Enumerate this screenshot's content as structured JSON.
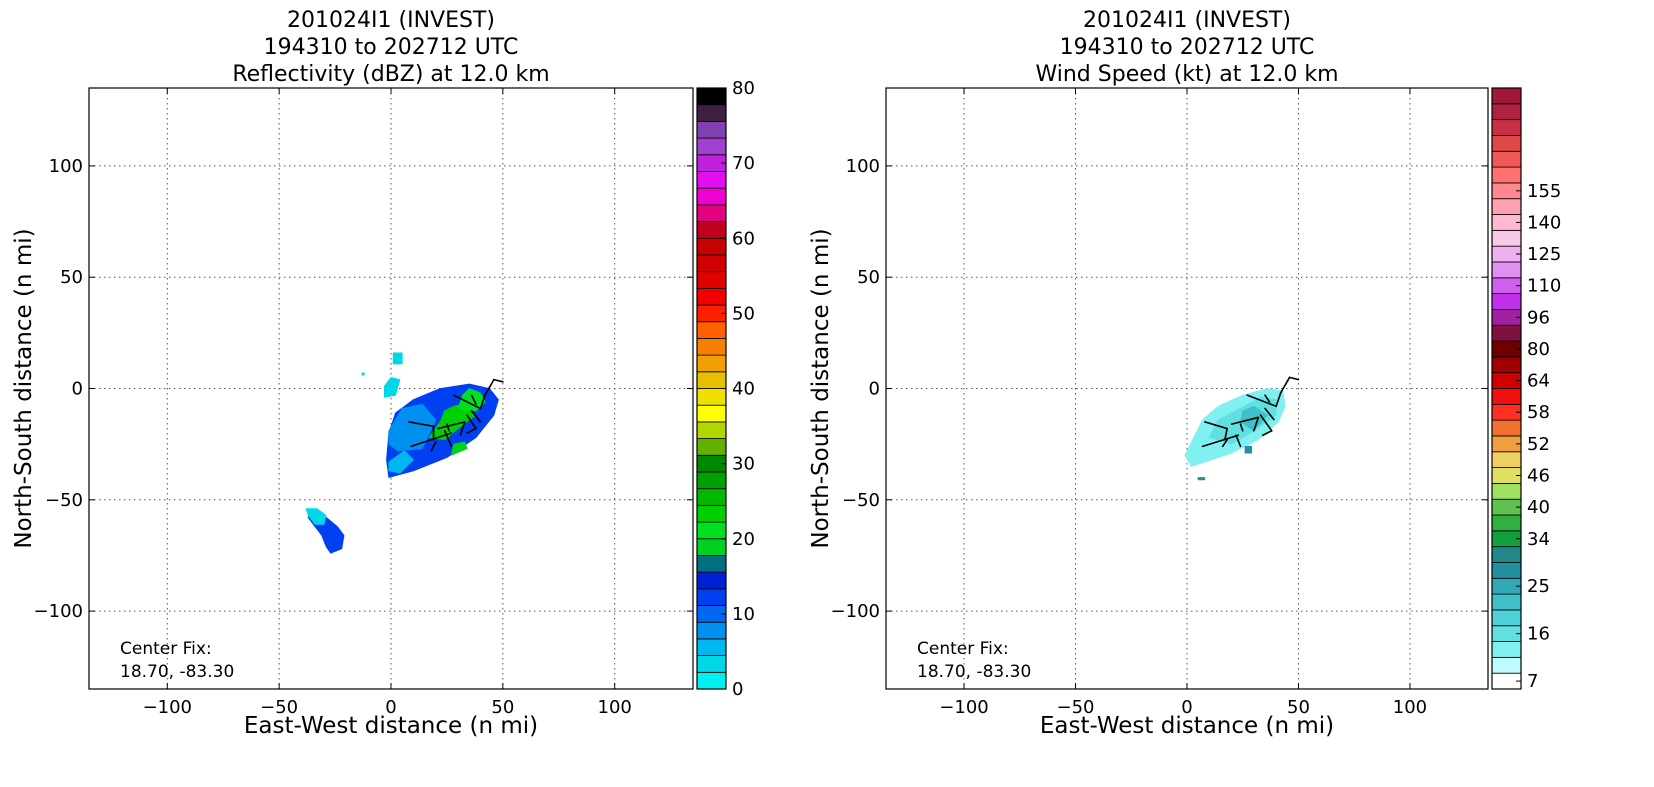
{
  "chart_data": [
    {
      "type": "heatmap",
      "title": [
        "201024I1 (INVEST)",
        "194310 to 202712 UTC",
        "Reflectivity (dBZ) at 12.0 km"
      ],
      "xlabel": "East-West distance (n mi)",
      "ylabel": "North-South distance (n mi)",
      "xlim": [
        -135,
        135
      ],
      "ylim": [
        -135,
        135
      ],
      "xticks": [
        -100,
        -50,
        0,
        50,
        100
      ],
      "yticks": [
        -100,
        -50,
        0,
        50,
        100
      ],
      "grid": true,
      "annotation": [
        "Center Fix:",
        "18.70, -83.30"
      ],
      "colorbar": {
        "ticks": [
          0,
          10,
          20,
          30,
          40,
          50,
          60,
          70,
          80
        ],
        "range": [
          0,
          80
        ],
        "colors": [
          "#00f0f0",
          "#00d8e8",
          "#00b8f0",
          "#0090f0",
          "#0068f0",
          "#0040f0",
          "#0020d8",
          "#007080",
          "#00d020",
          "#00e020",
          "#00d000",
          "#00b800",
          "#00a000",
          "#008800",
          "#60b000",
          "#b0d800",
          "#ffff00",
          "#f0e000",
          "#e8c000",
          "#f0a000",
          "#f88000",
          "#ff6000",
          "#ff2000",
          "#f00000",
          "#e00000",
          "#d00000",
          "#c80000",
          "#c00020",
          "#e00080",
          "#f000d0",
          "#e010f0",
          "#c020e0",
          "#a040d0",
          "#8040b0",
          "#402040",
          "#000000"
        ]
      },
      "echoes": [
        {
          "color": "#0040f0",
          "polygon": [
            [
              -1,
              -40
            ],
            [
              10,
              -37
            ],
            [
              25,
              -31
            ],
            [
              38,
              -22
            ],
            [
              46,
              -12
            ],
            [
              48,
              -5
            ],
            [
              44,
              0
            ],
            [
              35,
              2
            ],
            [
              22,
              0
            ],
            [
              10,
              -5
            ],
            [
              2,
              -11
            ],
            [
              -1,
              -20
            ],
            [
              -2,
              -32
            ]
          ]
        },
        {
          "color": "#0090f0",
          "polygon": [
            [
              -1,
              -19
            ],
            [
              5,
              -9
            ],
            [
              14,
              -7
            ],
            [
              20,
              -14
            ],
            [
              14,
              -27
            ],
            [
              3,
              -28
            ],
            [
              -1,
              -25
            ]
          ]
        },
        {
          "color": "#00b8f0",
          "polygon": [
            [
              -1,
              -33
            ],
            [
              6,
              -28
            ],
            [
              10,
              -32
            ],
            [
              4,
              -38
            ],
            [
              -1,
              -37
            ]
          ]
        },
        {
          "color": "#00d000",
          "polygon": [
            [
              17,
              -22
            ],
            [
              24,
              -23
            ],
            [
              30,
              -18
            ],
            [
              35,
              -14
            ],
            [
              38,
              -12
            ],
            [
              32,
              -7
            ],
            [
              28,
              -8
            ],
            [
              24,
              -10
            ],
            [
              22,
              -15
            ]
          ]
        },
        {
          "color": "#00e020",
          "polygon": [
            [
              30,
              -9
            ],
            [
              38,
              -10
            ],
            [
              42,
              -6
            ],
            [
              40,
              -2
            ],
            [
              35,
              0
            ],
            [
              32,
              -3
            ]
          ]
        },
        {
          "color": "#00d020",
          "polygon": [
            [
              27,
              -30
            ],
            [
              34,
              -27
            ],
            [
              33,
              -24
            ],
            [
              28,
              -25
            ]
          ]
        },
        {
          "color": "#0040f0",
          "polygon": [
            [
              -36,
              -55
            ],
            [
              -30,
              -57
            ],
            [
              -24,
              -62
            ],
            [
              -21,
              -66
            ],
            [
              -22,
              -72
            ],
            [
              -27,
              -74
            ],
            [
              -29,
              -71
            ],
            [
              -31,
              -66
            ],
            [
              -34,
              -62
            ],
            [
              -37,
              -58
            ]
          ]
        },
        {
          "color": "#00d8e8",
          "polygon": [
            [
              -38,
              -54
            ],
            [
              -33,
              -54
            ],
            [
              -29,
              -57
            ],
            [
              -30,
              -61
            ],
            [
              -34,
              -61
            ],
            [
              -37,
              -57
            ]
          ]
        },
        {
          "color": "#00d8e8",
          "polygon": [
            [
              -3,
              -4
            ],
            [
              2,
              -3
            ],
            [
              4,
              4
            ],
            [
              0,
              5
            ],
            [
              -3,
              1
            ]
          ]
        },
        {
          "color": "#00d8e8",
          "polygon": [
            [
              1,
              11
            ],
            [
              5,
              11
            ],
            [
              5,
              16
            ],
            [
              1,
              16
            ]
          ]
        },
        {
          "color": "#00d8e8",
          "polygon": [
            [
              -13,
              6
            ],
            [
              -12,
              6
            ],
            [
              -12,
              7
            ],
            [
              -13,
              7
            ]
          ]
        }
      ],
      "barbs": [
        [
          [
            9,
            -26
          ],
          [
            27,
            -20
          ]
        ],
        [
          [
            24,
            -19
          ],
          [
            27,
            -26
          ]
        ],
        [
          [
            20,
            -24
          ],
          [
            18,
            -28
          ]
        ],
        [
          [
            8,
            -15
          ],
          [
            19,
            -17
          ]
        ],
        [
          [
            19,
            -17
          ],
          [
            19,
            -23
          ]
        ],
        [
          [
            21,
            -18
          ],
          [
            33,
            -15
          ]
        ],
        [
          [
            33,
            -15
          ],
          [
            31,
            -21
          ]
        ],
        [
          [
            25,
            -16
          ],
          [
            26,
            -19
          ]
        ],
        [
          [
            34,
            -12
          ],
          [
            38,
            -18
          ]
        ],
        [
          [
            38,
            -18
          ],
          [
            34,
            -20
          ]
        ],
        [
          [
            40,
            -15
          ],
          [
            36,
            -10
          ]
        ],
        [
          [
            28,
            -3
          ],
          [
            40,
            -9
          ]
        ],
        [
          [
            40,
            -9
          ],
          [
            42,
            -3
          ]
        ],
        [
          [
            36,
            -3
          ],
          [
            38,
            -7
          ]
        ],
        [
          [
            42,
            -3
          ],
          [
            46,
            4
          ]
        ],
        [
          [
            46,
            4
          ],
          [
            50,
            3
          ]
        ]
      ]
    },
    {
      "type": "heatmap",
      "title": [
        "201024I1 (INVEST)",
        "194310 to 202712 UTC",
        "Wind Speed (kt) at 12.0 km"
      ],
      "xlabel": "East-West distance (n mi)",
      "ylabel": "North-South distance (n mi)",
      "xlim": [
        -135,
        135
      ],
      "ylim": [
        -135,
        135
      ],
      "xticks": [
        -100,
        -50,
        0,
        50,
        100
      ],
      "yticks": [
        -100,
        -50,
        0,
        50,
        100
      ],
      "grid": true,
      "annotation": [
        "Center Fix:",
        "18.70, -83.30"
      ],
      "colorbar": {
        "ticks": [
          7,
          16,
          25,
          34,
          40,
          46,
          52,
          58,
          64,
          80,
          96,
          110,
          125,
          140,
          155
        ],
        "tick_index": [
          0,
          3,
          6,
          9,
          11,
          13,
          15,
          17,
          19,
          21,
          23,
          25,
          27,
          29,
          31
        ],
        "colors": [
          "#ffffff",
          "#c0fcfc",
          "#80f0f0",
          "#60e0e0",
          "#50d0d8",
          "#40c0c8",
          "#30a8b8",
          "#2090a0",
          "#208888",
          "#10a040",
          "#30b040",
          "#60c050",
          "#a0e060",
          "#e0e060",
          "#f0d060",
          "#f0a040",
          "#f07030",
          "#ff3020",
          "#f01010",
          "#d00000",
          "#a00000",
          "#700000",
          "#801040",
          "#a020a0",
          "#c030e8",
          "#d060f0",
          "#e090f0",
          "#f0b0f0",
          "#f8c8e8",
          "#ffb8d0",
          "#ffa0b0",
          "#ff8890",
          "#ff7070",
          "#f05858",
          "#e04848",
          "#c83048",
          "#b02040",
          "#a01838"
        ]
      },
      "echoes": [
        {
          "color": "#80f0f0",
          "polygon": [
            [
              2,
              -35
            ],
            [
              8,
              -33
            ],
            [
              20,
              -29
            ],
            [
              32,
              -23
            ],
            [
              41,
              -15
            ],
            [
              44,
              -8
            ],
            [
              43,
              -1
            ],
            [
              36,
              0
            ],
            [
              25,
              -3
            ],
            [
              14,
              -8
            ],
            [
              7,
              -14
            ],
            [
              2,
              -24
            ],
            [
              -1,
              -30
            ]
          ]
        },
        {
          "color": "#60e0e0",
          "polygon": [
            [
              10,
              -22
            ],
            [
              20,
              -25
            ],
            [
              30,
              -19
            ],
            [
              40,
              -12
            ],
            [
              40,
              -5
            ],
            [
              33,
              -4
            ],
            [
              24,
              -9
            ],
            [
              14,
              -14
            ]
          ]
        },
        {
          "color": "#40c0c8",
          "polygon": [
            [
              24,
              -15
            ],
            [
              30,
              -19
            ],
            [
              36,
              -12
            ],
            [
              30,
              -8
            ],
            [
              25,
              -10
            ]
          ]
        },
        {
          "color": "#2090a0",
          "polygon": [
            [
              26,
              -26
            ],
            [
              29,
              -26
            ],
            [
              29,
              -29
            ],
            [
              26,
              -29
            ]
          ]
        },
        {
          "color": "#2090a0",
          "polygon": [
            [
              5,
              -40
            ],
            [
              8,
              -40
            ],
            [
              8,
              -41
            ],
            [
              5,
              -41
            ]
          ]
        }
      ],
      "barbs": [
        [
          [
            7,
            -26
          ],
          [
            23,
            -21
          ]
        ],
        [
          [
            22,
            -21
          ],
          [
            24,
            -26
          ]
        ],
        [
          [
            18,
            -23
          ],
          [
            16,
            -26
          ]
        ],
        [
          [
            8,
            -15
          ],
          [
            18,
            -18
          ]
        ],
        [
          [
            18,
            -18
          ],
          [
            17,
            -23
          ]
        ],
        [
          [
            20,
            -16
          ],
          [
            32,
            -13
          ]
        ],
        [
          [
            32,
            -13
          ],
          [
            30,
            -19
          ]
        ],
        [
          [
            24,
            -16
          ],
          [
            25,
            -19
          ]
        ],
        [
          [
            33,
            -12
          ],
          [
            38,
            -19
          ]
        ],
        [
          [
            38,
            -19
          ],
          [
            34,
            -21
          ]
        ],
        [
          [
            39,
            -14
          ],
          [
            35,
            -9
          ]
        ],
        [
          [
            27,
            -3
          ],
          [
            40,
            -8
          ]
        ],
        [
          [
            40,
            -8
          ],
          [
            42,
            -2
          ]
        ],
        [
          [
            35,
            -3
          ],
          [
            37,
            -6
          ]
        ],
        [
          [
            42,
            -2
          ],
          [
            46,
            5
          ]
        ],
        [
          [
            46,
            5
          ],
          [
            50,
            4
          ]
        ]
      ]
    }
  ]
}
